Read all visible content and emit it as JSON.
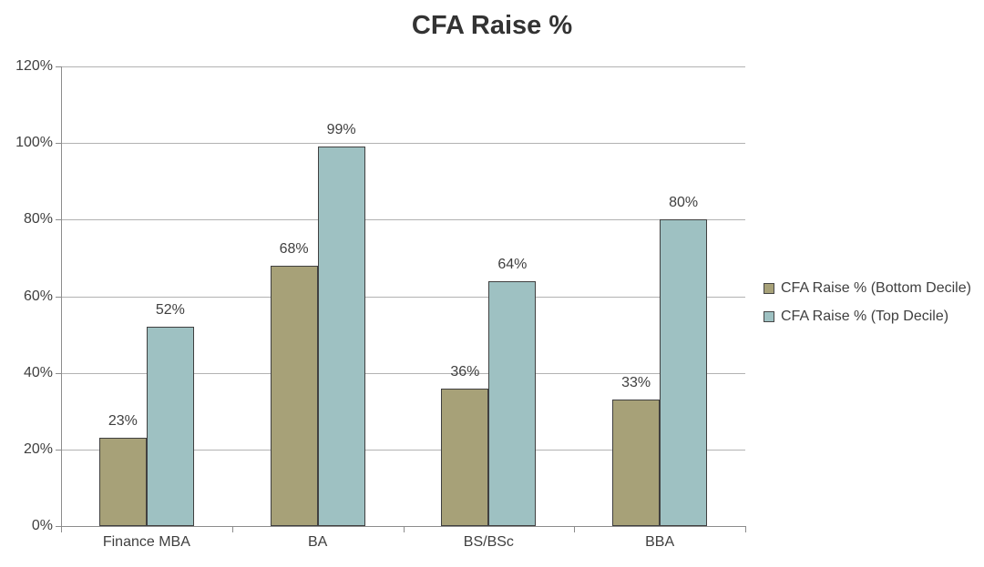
{
  "chart_data": {
    "type": "bar",
    "title": "CFA Raise %",
    "categories": [
      "Finance MBA",
      "BA",
      "BS/BSc",
      "BBA"
    ],
    "series": [
      {
        "name": "CFA Raise % (Bottom Decile)",
        "color": "#a7a178",
        "values": [
          23,
          68,
          36,
          33
        ]
      },
      {
        "name": "CFA Raise % (Top Decile)",
        "color": "#9ec1c2",
        "values": [
          52,
          99,
          64,
          80
        ]
      }
    ],
    "data_labels": [
      [
        "23%",
        "68%",
        "36%",
        "33%"
      ],
      [
        "52%",
        "99%",
        "64%",
        "80%"
      ]
    ],
    "ylim": [
      0,
      120
    ],
    "ytick_step": 20,
    "ytick_labels": [
      "0%",
      "20%",
      "40%",
      "60%",
      "80%",
      "100%",
      "120%"
    ],
    "xlabel": "",
    "ylabel": "",
    "grid": true,
    "legend_position": "right"
  },
  "colors": {
    "background": "#ffffff",
    "title_text": "#333333",
    "label_text": "#3f3f3f",
    "gridline": "#b2b2b2",
    "axis": "#8c8c8c",
    "bar_border": "#404040"
  }
}
